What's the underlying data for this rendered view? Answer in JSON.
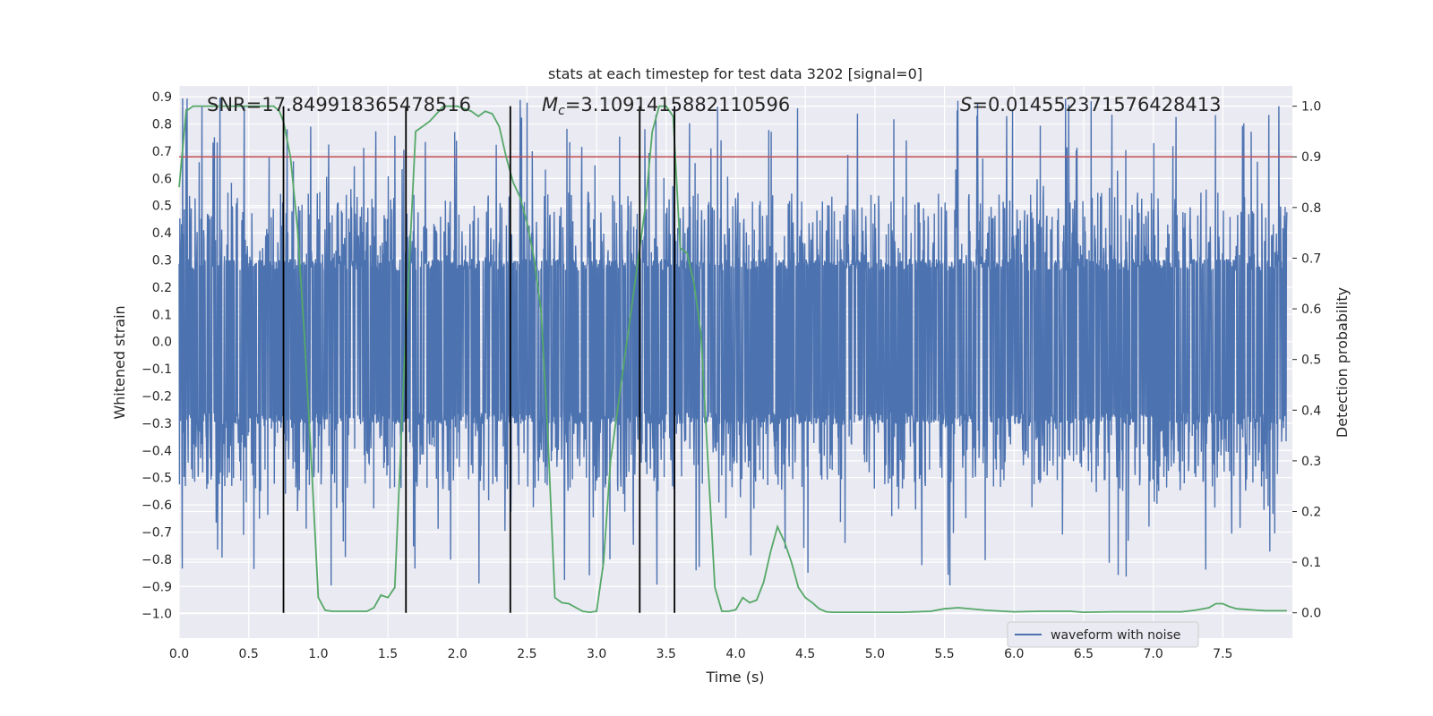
{
  "chart_data": {
    "type": "line",
    "title": "stats at each timestep for test data 3202 [signal=0]",
    "xlabel": "Time (s)",
    "ylabel": "Whitened strain",
    "y2label": "Detection probability",
    "xlim": [
      0,
      8.0
    ],
    "ylim": [
      -1.09,
      0.94
    ],
    "y2lim": [
      -0.05,
      1.04
    ],
    "xticks": [
      "0.0",
      "0.5",
      "1.0",
      "1.5",
      "2.0",
      "2.5",
      "3.0",
      "3.5",
      "4.0",
      "4.5",
      "5.0",
      "5.5",
      "6.0",
      "6.5",
      "7.0",
      "7.5"
    ],
    "yticks": [
      "0.9",
      "0.8",
      "0.7",
      "0.6",
      "0.5",
      "0.4",
      "0.3",
      "0.2",
      "0.1",
      "0.0",
      "-0.1",
      "-0.2",
      "-0.3",
      "-0.4",
      "-0.5",
      "-0.6",
      "-0.7",
      "-0.8",
      "-0.9",
      "-1.0"
    ],
    "y2ticks": [
      "1.0",
      "0.9",
      "0.8",
      "0.7",
      "0.6",
      "0.5",
      "0.4",
      "0.3",
      "0.2",
      "0.1",
      "0.0"
    ],
    "grid": true,
    "legend_position": "lower-right",
    "annotations": {
      "snr": "SNR=17.849918365478516",
      "mc_prefix": "M",
      "mc_sub": "c",
      "mc_value": "=3.1091415882110596",
      "s_prefix": "S",
      "s_value": "=0.014552371576428413"
    },
    "series": [
      {
        "name": "waveform with noise",
        "color": "#4c72b0",
        "description": "dense whitened strain noise, mostly within about ±0.3 with spikes to ±0.9",
        "envelope": {
          "core": 0.29,
          "typical_peak": 0.55,
          "max": 0.9
        }
      },
      {
        "color": "#55a868",
        "axis": "right",
        "x": [
          0.0,
          0.05,
          0.1,
          0.2,
          0.3,
          0.4,
          0.5,
          0.6,
          0.68,
          0.72,
          0.75,
          0.8,
          0.85,
          0.9,
          0.95,
          1.0,
          1.05,
          1.1,
          1.2,
          1.3,
          1.35,
          1.4,
          1.45,
          1.5,
          1.55,
          1.62,
          1.7,
          1.8,
          1.9,
          2.0,
          2.1,
          2.15,
          2.2,
          2.25,
          2.3,
          2.35,
          2.4,
          2.45,
          2.5,
          2.55,
          2.6,
          2.65,
          2.7,
          2.75,
          2.8,
          2.9,
          2.95,
          3.0,
          3.05,
          3.1,
          3.2,
          3.25,
          3.3,
          3.35,
          3.4,
          3.45,
          3.5,
          3.55,
          3.6,
          3.65,
          3.7,
          3.75,
          3.8,
          3.85,
          3.9,
          3.95,
          4.0,
          4.05,
          4.1,
          4.15,
          4.2,
          4.25,
          4.3,
          4.35,
          4.4,
          4.45,
          4.5,
          4.55,
          4.6,
          4.65,
          4.7,
          4.8,
          5.0,
          5.2,
          5.4,
          5.5,
          5.6,
          5.8,
          6.0,
          6.2,
          6.4,
          6.5,
          6.7,
          6.9,
          7.0,
          7.2,
          7.3,
          7.4,
          7.45,
          7.5,
          7.55,
          7.6,
          7.8,
          7.96
        ],
        "y": [
          0.84,
          0.99,
          1.0,
          1.0,
          1.0,
          1.0,
          1.0,
          1.0,
          1.0,
          0.99,
          0.97,
          0.9,
          0.76,
          0.55,
          0.3,
          0.03,
          0.005,
          0.003,
          0.003,
          0.003,
          0.003,
          0.01,
          0.035,
          0.03,
          0.05,
          0.5,
          0.95,
          0.97,
          1.0,
          1.0,
          0.99,
          0.98,
          0.99,
          0.985,
          0.96,
          0.9,
          0.85,
          0.82,
          0.77,
          0.7,
          0.6,
          0.35,
          0.03,
          0.02,
          0.018,
          0.003,
          0.001,
          0.003,
          0.1,
          0.3,
          0.5,
          0.6,
          0.7,
          0.8,
          0.95,
          1.0,
          1.0,
          0.98,
          0.72,
          0.71,
          0.65,
          0.55,
          0.3,
          0.05,
          0.003,
          0.003,
          0.006,
          0.03,
          0.02,
          0.025,
          0.06,
          0.12,
          0.17,
          0.14,
          0.1,
          0.05,
          0.03,
          0.02,
          0.008,
          0.002,
          0.001,
          0.001,
          0.001,
          0.001,
          0.003,
          0.008,
          0.01,
          0.005,
          0.002,
          0.003,
          0.003,
          0.001,
          0.002,
          0.002,
          0.002,
          0.002,
          0.005,
          0.01,
          0.018,
          0.018,
          0.012,
          0.008,
          0.004,
          0.004
        ]
      }
    ],
    "hlines": [
      {
        "y2": 0.9,
        "color": "#c44e52"
      }
    ],
    "vlines": {
      "x": [
        0.75,
        1.63,
        2.38,
        3.31,
        3.56
      ],
      "y2_range": [
        0.0,
        1.0
      ],
      "color": "#000000"
    }
  }
}
